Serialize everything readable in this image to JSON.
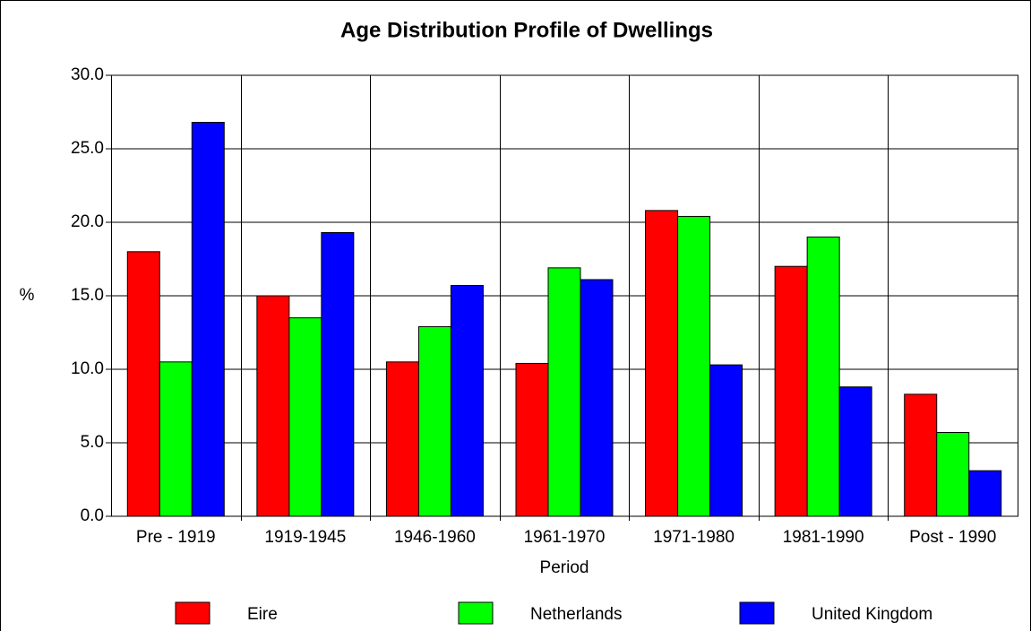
{
  "chart_data": {
    "type": "bar",
    "title": "Age Distribution Profile of Dwellings",
    "x_label": "Period",
    "y_label": "%",
    "categories": [
      "Pre - 1919",
      "1919-1945",
      "1946-1960",
      "1961-1970",
      "1971-1980",
      "1981-1990",
      "Post - 1990"
    ],
    "series": [
      {
        "name": "Eire",
        "color": "#ff0000",
        "values": [
          18.0,
          15.0,
          10.5,
          10.4,
          20.8,
          17.0,
          8.3
        ]
      },
      {
        "name": "Netherlands",
        "color": "#00ff00",
        "values": [
          10.5,
          13.5,
          12.9,
          16.9,
          20.4,
          19.0,
          5.7
        ]
      },
      {
        "name": "United Kingdom",
        "color": "#0000ff",
        "values": [
          26.8,
          19.3,
          15.7,
          16.1,
          10.3,
          8.8,
          3.1
        ]
      }
    ],
    "ylim": [
      0,
      30
    ],
    "yticks": [
      {
        "value": 0,
        "label": "0.0"
      },
      {
        "value": 5,
        "label": "5.0"
      },
      {
        "value": 10,
        "label": "10.0"
      },
      {
        "value": 15,
        "label": "15.0"
      },
      {
        "value": 20,
        "label": "20.0"
      },
      {
        "value": 25,
        "label": "25.0"
      },
      {
        "value": 30,
        "label": "30.0"
      }
    ],
    "grid": true,
    "legend": "bottom"
  }
}
